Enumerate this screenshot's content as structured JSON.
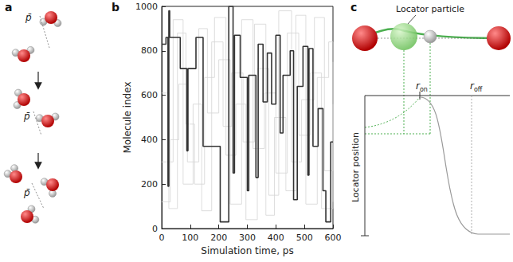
{
  "panels": [
    "a",
    "b",
    "c"
  ],
  "diagram_a": {
    "labels": [
      "p̄",
      "p̄",
      "p̄"
    ]
  },
  "chart_data": {
    "type": "line",
    "xlabel": "Simulation time, ps",
    "ylabel": "Molecule index",
    "xlim": [
      0,
      600
    ],
    "xticks": [
      0,
      100,
      200,
      300,
      400,
      500,
      600
    ],
    "ylim": [
      0,
      1000
    ],
    "yticks": [
      0,
      200,
      400,
      600,
      800,
      1000
    ],
    "grid": false,
    "series": [
      {
        "type": "step",
        "color": "#d4d4d4",
        "x": [
          0,
          30,
          60,
          90,
          130,
          160,
          200,
          240,
          280,
          320,
          360,
          400,
          440,
          480,
          520,
          560,
          600
        ],
        "values": [
          120,
          400,
          650,
          300,
          900,
          520,
          760,
          110,
          940,
          360,
          610,
          250,
          880,
          420,
          700,
          90,
          560
        ]
      },
      {
        "type": "step",
        "color": "#d4d4d4",
        "x": [
          0,
          25,
          55,
          85,
          115,
          150,
          185,
          225,
          260,
          295,
          335,
          375,
          410,
          455,
          490,
          535,
          570,
          600
        ],
        "values": [
          610,
          90,
          880,
          470,
          200,
          680,
          950,
          330,
          560,
          40,
          720,
          150,
          980,
          300,
          580,
          950,
          260,
          750
        ]
      },
      {
        "type": "step",
        "color": "#d4d4d4",
        "x": [
          0,
          40,
          75,
          110,
          140,
          175,
          215,
          245,
          285,
          325,
          365,
          395,
          435,
          470,
          505,
          545,
          585,
          600
        ],
        "values": [
          300,
          940,
          200,
          560,
          80,
          840,
          460,
          700,
          390,
          920,
          60,
          500,
          170,
          960,
          110,
          680,
          840,
          120
        ]
      },
      {
        "type": "step",
        "color": "#333333",
        "x": [
          0,
          15,
          22,
          25,
          28,
          65,
          88,
          92,
          120,
          145,
          205,
          235,
          250,
          255,
          275,
          300,
          305,
          330,
          338,
          355,
          370,
          385,
          400,
          415,
          425,
          450,
          462,
          475,
          495,
          512,
          516,
          530,
          548,
          565,
          575,
          592,
          600
        ],
        "values": [
          830,
          860,
          190,
          980,
          860,
          720,
          350,
          720,
          860,
          370,
          30,
          1000,
          250,
          870,
          680,
          170,
          690,
          230,
          830,
          570,
          790,
          560,
          870,
          430,
          690,
          800,
          130,
          640,
          820,
          240,
          810,
          370,
          540,
          170,
          30,
          390,
          390
        ]
      }
    ]
  },
  "diagram_c": {
    "callout": "Locator particle",
    "marks": [
      {
        "base": "r",
        "subscript": "on"
      },
      {
        "base": "r",
        "subscript": "off"
      }
    ],
    "axis_label": "Locator position"
  }
}
